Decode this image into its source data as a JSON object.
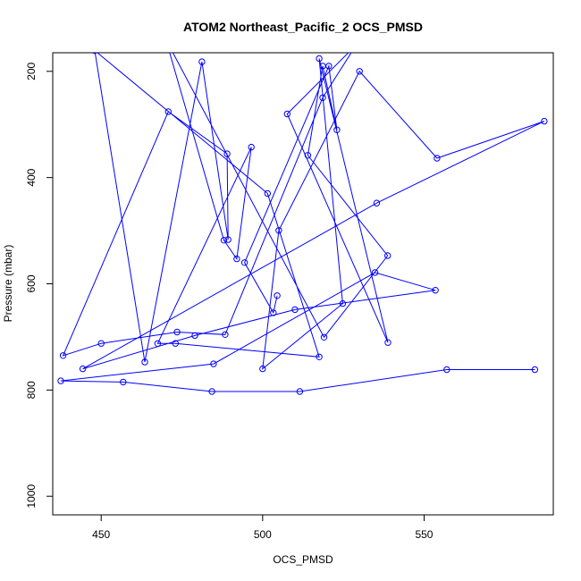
{
  "chart_data": {
    "type": "line",
    "title": "ATOM2 Northeast_Pacific_2 OCS_PMSD",
    "xlabel": "OCS_PMSD",
    "ylabel": "Pressure (mbar)",
    "xlim": [
      435,
      590
    ],
    "ylim": [
      1035,
      165
    ],
    "y_inverted": true,
    "x_ticks": [
      450,
      500,
      550
    ],
    "x_tick_labels": [
      "450",
      "500",
      "550"
    ],
    "y_ticks": [
      200,
      400,
      600,
      800,
      1000
    ],
    "y_tick_labels": [
      "200",
      "400",
      "600",
      "800",
      "1000"
    ],
    "grid": false,
    "legend": "none",
    "series": [
      {
        "color": "#0000ff",
        "marker": "open-circle",
        "x": [
          584.3,
          557.0,
          511.5,
          484.3,
          456.8,
          437.5,
          484.8,
          534.8,
          553.5,
          510.0,
          479.0,
          444.3,
          535.3,
          587.2,
          554.0,
          530.0,
          505.0,
          500.0,
          524.8,
          517.5,
          538.8,
          507.6,
          529.0,
          518.6,
          488.4,
          473.5,
          450.0,
          438.2,
          470.8,
          489.0,
          489.3,
          481.2,
          463.5,
          448.0,
          501.5,
          517.5,
          473.0,
          467.5,
          496.5,
          492.0,
          488.0,
          470.0,
          519.0,
          538.7,
          514.0,
          518.6,
          523.0,
          520.5,
          494.4,
          503.3,
          504.5
        ],
        "y": [
          761.5,
          761.5,
          802.7,
          802.7,
          784.9,
          782.7,
          750.8,
          578.8,
          612.2,
          648.7,
          697.5,
          760.0,
          448.1,
          293.9,
          363.5,
          200.0,
          499.5,
          760.0,
          637.2,
          176.0,
          710.6,
          280.3,
          150.0,
          249.6,
          695.6,
          690.8,
          712.3,
          735.2,
          275.9,
          355.3,
          516.8,
          182.0,
          747.2,
          161.0,
          429.9,
          737.6,
          712.3,
          712.4,
          342.7,
          553.0,
          518.0,
          140.0,
          700.6,
          547.0,
          358.2,
          190.0,
          310.3,
          190.0,
          560.1,
          654.5,
          622.3
        ]
      }
    ]
  }
}
